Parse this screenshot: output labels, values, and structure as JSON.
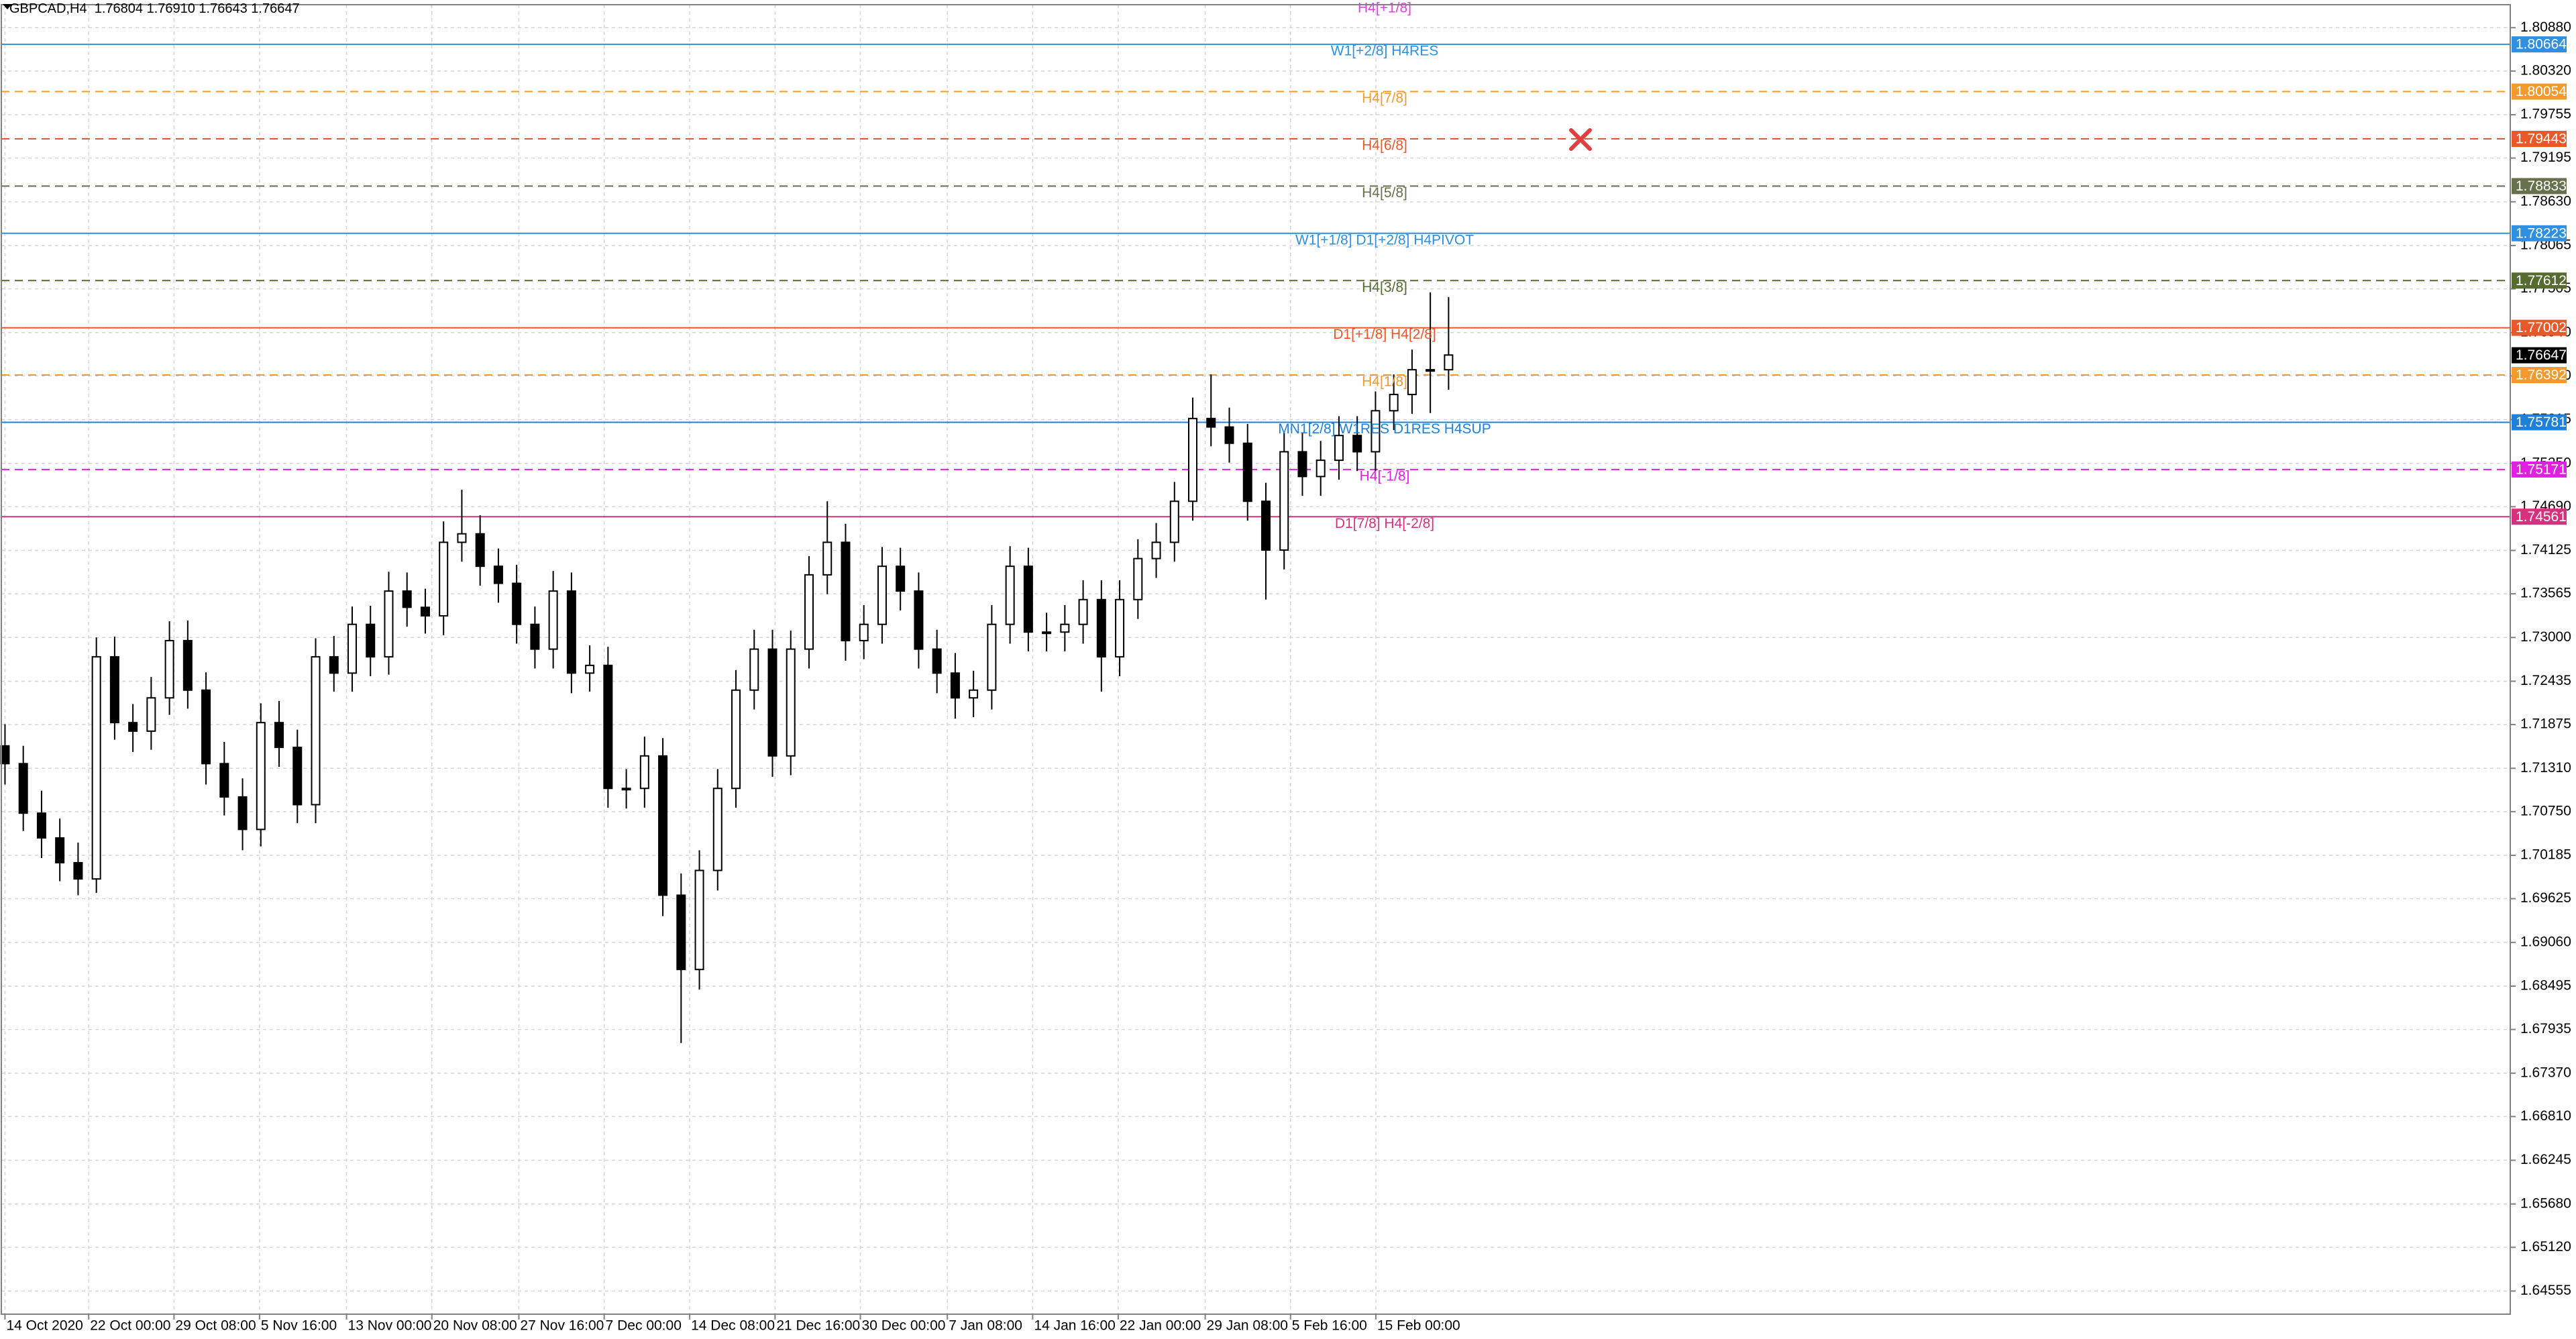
{
  "header": {
    "symbol": "GBPCAD,H4",
    "quote": "1.76804 1.76910 1.76643 1.76647"
  },
  "chart_data": {
    "type": "candlestick",
    "x": [
      0,
      1,
      2,
      3,
      4,
      5,
      6,
      7,
      8,
      9,
      10,
      11,
      12,
      13,
      14,
      15,
      16,
      17,
      18,
      19,
      20,
      21,
      22,
      23,
      24,
      25,
      26,
      27,
      28,
      29,
      30,
      31,
      32,
      33,
      34,
      35,
      36,
      37,
      38,
      39,
      40,
      41,
      42,
      43,
      44,
      45,
      46,
      47,
      48,
      49,
      50,
      51,
      52,
      53,
      54,
      55,
      56,
      57,
      58,
      59,
      60,
      61,
      62,
      63,
      64,
      65,
      66,
      67,
      68,
      69,
      70,
      71,
      72,
      73,
      74,
      75,
      76,
      77,
      78,
      79
    ],
    "open": [
      1.716,
      1.7137,
      1.7073,
      1.7041,
      1.7009,
      1.6988,
      1.7275,
      1.719,
      1.7179,
      1.7222,
      1.7296,
      1.7232,
      1.7137,
      1.7094,
      1.7052,
      1.719,
      1.7158,
      1.7084,
      1.7275,
      1.7254,
      1.7317,
      1.7275,
      1.736,
      1.7339,
      1.7328,
      1.7423,
      1.7434,
      1.7392,
      1.737,
      1.7317,
      1.7285,
      1.736,
      1.7254,
      1.7264,
      1.7105,
      1.7105,
      1.7147,
      1.6967,
      1.6871,
      1.6999,
      1.7105,
      1.7232,
      1.7285,
      1.7147,
      1.7285,
      1.7381,
      1.7423,
      1.7296,
      1.7317,
      1.7392,
      1.736,
      1.7285,
      1.7254,
      1.7222,
      1.7232,
      1.7317,
      1.7392,
      1.7307,
      1.7307,
      1.7317,
      1.7349,
      1.7275,
      1.7349,
      1.7402,
      1.7423,
      1.7476,
      1.7583,
      1.7572,
      1.7551,
      1.7476,
      1.7413,
      1.754,
      1.7508,
      1.7529,
      1.7561,
      1.754,
      1.7593,
      1.7614,
      1.7646,
      1.7646
    ],
    "high": [
      1.7188,
      1.716,
      1.7102,
      1.7066,
      1.7035,
      1.73,
      1.7301,
      1.7214,
      1.7249,
      1.7321,
      1.7322,
      1.7255,
      1.7165,
      1.7118,
      1.7215,
      1.7218,
      1.7181,
      1.7299,
      1.7302,
      1.734,
      1.7341,
      1.7385,
      1.7384,
      1.7363,
      1.745,
      1.7491,
      1.7458,
      1.7415,
      1.7394,
      1.734,
      1.7386,
      1.7384,
      1.729,
      1.7288,
      1.713,
      1.7172,
      1.717,
      1.6995,
      1.7025,
      1.713,
      1.7258,
      1.731,
      1.731,
      1.7309,
      1.7405,
      1.7476,
      1.7447,
      1.7342,
      1.7417,
      1.7416,
      1.7384,
      1.731,
      1.728,
      1.7257,
      1.7342,
      1.7418,
      1.7416,
      1.7332,
      1.7342,
      1.7374,
      1.7374,
      1.7374,
      1.7427,
      1.7448,
      1.7501,
      1.761,
      1.764,
      1.7597,
      1.7576,
      1.75,
      1.7565,
      1.7565,
      1.7554,
      1.7586,
      1.7586,
      1.7618,
      1.764,
      1.7672,
      1.7746,
      1.774
    ],
    "low": [
      1.711,
      1.705,
      1.7015,
      1.6985,
      1.6967,
      1.697,
      1.7168,
      1.7152,
      1.7155,
      1.72,
      1.7208,
      1.711,
      1.707,
      1.7025,
      1.703,
      1.7133,
      1.706,
      1.706,
      1.723,
      1.723,
      1.725,
      1.7252,
      1.7314,
      1.7305,
      1.7303,
      1.7398,
      1.7367,
      1.7345,
      1.7292,
      1.726,
      1.726,
      1.7228,
      1.723,
      1.708,
      1.7079,
      1.708,
      1.694,
      1.6776,
      1.6845,
      1.6973,
      1.708,
      1.7207,
      1.712,
      1.7122,
      1.726,
      1.7356,
      1.727,
      1.7272,
      1.7292,
      1.7335,
      1.726,
      1.7228,
      1.7195,
      1.7197,
      1.7207,
      1.7292,
      1.7282,
      1.7282,
      1.7282,
      1.7292,
      1.723,
      1.725,
      1.7324,
      1.7377,
      1.7398,
      1.7451,
      1.7547,
      1.7526,
      1.7451,
      1.7349,
      1.7388,
      1.7483,
      1.7483,
      1.7504,
      1.7515,
      1.7515,
      1.7568,
      1.7589,
      1.759,
      1.762
    ],
    "close": [
      1.7137,
      1.7073,
      1.7041,
      1.7009,
      1.6988,
      1.7275,
      1.719,
      1.7179,
      1.7222,
      1.7296,
      1.7232,
      1.7137,
      1.7094,
      1.7052,
      1.719,
      1.7158,
      1.7084,
      1.7275,
      1.7254,
      1.7317,
      1.7275,
      1.736,
      1.7339,
      1.7328,
      1.7423,
      1.7434,
      1.7392,
      1.737,
      1.7317,
      1.7285,
      1.736,
      1.7254,
      1.7264,
      1.7105,
      1.7105,
      1.7147,
      1.6967,
      1.6871,
      1.6999,
      1.7105,
      1.7232,
      1.7285,
      1.7147,
      1.7285,
      1.7381,
      1.7423,
      1.7296,
      1.7317,
      1.7392,
      1.736,
      1.7285,
      1.7254,
      1.7222,
      1.7232,
      1.7317,
      1.7392,
      1.7307,
      1.7307,
      1.7317,
      1.7349,
      1.7275,
      1.7349,
      1.7402,
      1.7423,
      1.7476,
      1.7583,
      1.7572,
      1.7551,
      1.7476,
      1.7413,
      1.754,
      1.7508,
      1.7529,
      1.7561,
      1.754,
      1.7593,
      1.7614,
      1.7646,
      1.7646,
      1.7665
    ],
    "up_color": "#ffffff",
    "down_color": "#000000",
    "wick_color": "#000000",
    "xlim": [
      -0.2,
      137.1
    ],
    "xticks": [
      {
        "value": 0,
        "label": "14 Oct 2020"
      },
      {
        "value": 4.58,
        "label": "22 Oct 00:00"
      },
      {
        "value": 9.25,
        "label": "29 Oct 08:00"
      },
      {
        "value": 13.93,
        "label": "5 Nov 16:00"
      },
      {
        "value": 18.69,
        "label": "13 Nov 00:00"
      },
      {
        "value": 23.36,
        "label": "20 Nov 08:00"
      },
      {
        "value": 28.12,
        "label": "27 Nov 16:00"
      },
      {
        "value": 32.79,
        "label": "7 Dec 00:00"
      },
      {
        "value": 37.47,
        "label": "14 Dec 08:00"
      },
      {
        "value": 42.14,
        "label": "21 Dec 16:00"
      },
      {
        "value": 46.81,
        "label": "30 Dec 00:00"
      },
      {
        "value": 51.57,
        "label": "7 Jan 08:00"
      },
      {
        "value": 56.24,
        "label": "14 Jan 16:00"
      },
      {
        "value": 60.92,
        "label": "22 Jan 00:00"
      },
      {
        "value": 65.68,
        "label": "29 Jan 08:00"
      },
      {
        "value": 70.35,
        "label": "5 Feb 16:00"
      },
      {
        "value": 75.02,
        "label": "15 Feb 00:00"
      }
    ],
    "ylim": [
      1.64256,
      1.81177
    ],
    "yticks": [
      {
        "value": 1.8088,
        "label": "1.80880"
      },
      {
        "value": 1.8032,
        "label": "1.80320"
      },
      1.79755,
      1.79195,
      {
        "value": 1.7863,
        "label": "1.78630"
      },
      1.78065,
      1.77505,
      {
        "value": 1.7694,
        "label": "1.76940"
      },
      {
        "value": 1.7638,
        "label": "1.76380"
      },
      1.75815,
      {
        "value": 1.7525,
        "label": "1.75250"
      },
      {
        "value": 1.7469,
        "label": "1.74690"
      },
      1.74125,
      1.73565,
      {
        "value": 1.73,
        "label": "1.73000"
      },
      1.72435,
      1.71875,
      {
        "value": 1.7131,
        "label": "1.71310"
      },
      {
        "value": 1.7075,
        "label": "1.70750"
      },
      1.70185,
      1.69625,
      {
        "value": 1.6906,
        "label": "1.69060"
      },
      1.68495,
      1.67935,
      {
        "value": 1.6737,
        "label": "1.67370"
      },
      {
        "value": 1.6681,
        "label": "1.66810"
      },
      1.66245,
      {
        "value": 1.6568,
        "label": "1.65680"
      },
      {
        "value": 1.6512,
        "label": "1.65120"
      },
      1.64555
    ],
    "grid": true,
    "levels": [
      {
        "label": "H4[+1/8]",
        "value": 1.81274,
        "color": "#e040e0",
        "dashed": true,
        "price_tag": false
      },
      {
        "label": "W1[+2/8] H4RES",
        "value": 1.80664,
        "color": "#2f8fe0",
        "dashed": false,
        "price_tag": true
      },
      {
        "label": "H4[7/8]",
        "value": 1.80054,
        "color": "#f39a2e",
        "dashed": true,
        "price_tag": true
      },
      {
        "label": "H4[6/8]",
        "value": 1.79443,
        "color": "#e8582a",
        "dashed": true,
        "price_tag": true
      },
      {
        "label": "H4[5/8]",
        "value": 1.78833,
        "color": "#66704a",
        "dashed": true,
        "price_tag": true
      },
      {
        "label": "W1[+1/8] D1[+2/8] H4PIVOT",
        "value": 1.78223,
        "color": "#2f8fe0",
        "dashed": false,
        "price_tag": true
      },
      {
        "label": "H4[3/8]",
        "value": 1.77612,
        "color": "#556b2f",
        "dashed": true,
        "price_tag": true
      },
      {
        "label": "D1[+1/8] H4[2/8]",
        "value": 1.77002,
        "color": "#e8582a",
        "dashed": false,
        "price_tag": true
      },
      {
        "label": "H4[1/8]",
        "value": 1.76392,
        "color": "#f39a2e",
        "dashed": true,
        "price_tag": true
      },
      {
        "label": "MN1[2/8] W1RES D1RES H4SUP",
        "value": 1.75781,
        "color": "#1e80d8",
        "dashed": false,
        "price_tag": true
      },
      {
        "label": "H4[-1/8]",
        "value": 1.75171,
        "color": "#e020e0",
        "dashed": true,
        "price_tag": true
      },
      {
        "label": "D1[7/8] H4[-2/8]",
        "value": 1.74561,
        "color": "#d8307f",
        "dashed": false,
        "price_tag": true
      }
    ],
    "current_price": 1.76647
  }
}
